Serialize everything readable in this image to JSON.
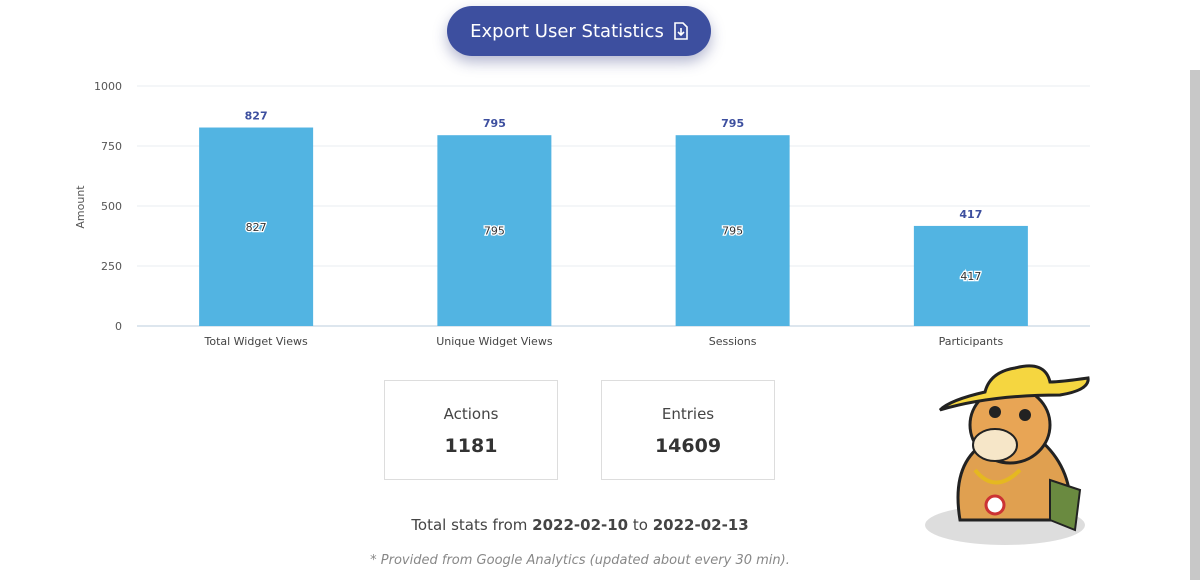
{
  "button": {
    "label": "Export User Statistics"
  },
  "chart_data": {
    "type": "bar",
    "ylabel": "Amount",
    "categories": [
      "Total Widget Views",
      "Unique Widget Views",
      "Sessions",
      "Participants"
    ],
    "values": [
      827,
      795,
      795,
      417
    ],
    "color": "#52b4e2",
    "ylim": [
      0,
      1000
    ],
    "yticks": [
      0,
      250,
      500,
      750,
      1000
    ],
    "grid": true
  },
  "stats": [
    {
      "label": "Actions",
      "value": "1181"
    },
    {
      "label": "Entries",
      "value": "14609"
    }
  ],
  "footer": {
    "prefix": "Total stats from",
    "start": "2022-02-10",
    "mid": "to",
    "end": "2022-02-13",
    "note": "* Provided from Google Analytics (updated about every 30 min)."
  }
}
